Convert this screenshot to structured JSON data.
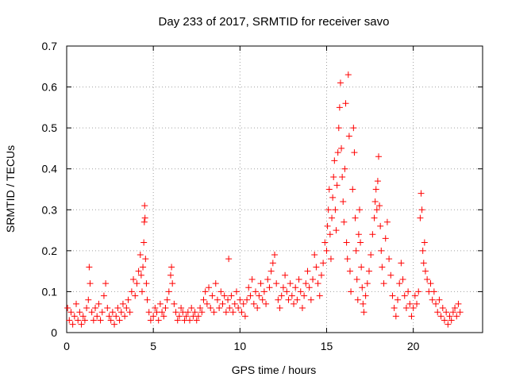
{
  "chart_data": {
    "type": "scatter",
    "title": "Day 233 of 2017, SRMTID for receiver savo",
    "xlabel": "GPS time / hours",
    "ylabel": "SRMTID / TECUs",
    "xlim": [
      0,
      24
    ],
    "ylim": [
      0,
      0.7
    ],
    "xticks": [
      0,
      5,
      10,
      15,
      20
    ],
    "xtick_labels": [
      "0",
      "5",
      "10",
      "15",
      "20"
    ],
    "yticks": [
      0,
      0.1,
      0.2,
      0.3,
      0.4,
      0.5,
      0.6,
      0.7
    ],
    "ytick_labels": [
      "0",
      "0.1",
      "0.2",
      "0.3",
      "0.4",
      "0.5",
      "0.6",
      "0.7"
    ],
    "grid": true,
    "marker": "+",
    "series": [
      {
        "name": "SRMTID",
        "color": "#ff0000",
        "points": [
          [
            0.05,
            0.06
          ],
          [
            0.15,
            0.03
          ],
          [
            0.25,
            0.05
          ],
          [
            0.35,
            0.02
          ],
          [
            0.45,
            0.04
          ],
          [
            0.55,
            0.07
          ],
          [
            0.65,
            0.03
          ],
          [
            0.75,
            0.05
          ],
          [
            0.85,
            0.02
          ],
          [
            0.95,
            0.04
          ],
          [
            1.05,
            0.03
          ],
          [
            1.15,
            0.06
          ],
          [
            1.25,
            0.08
          ],
          [
            1.3,
            0.16
          ],
          [
            1.35,
            0.12
          ],
          [
            1.45,
            0.05
          ],
          [
            1.55,
            0.03
          ],
          [
            1.65,
            0.06
          ],
          [
            1.75,
            0.04
          ],
          [
            1.85,
            0.07
          ],
          [
            1.95,
            0.03
          ],
          [
            2.05,
            0.05
          ],
          [
            2.15,
            0.09
          ],
          [
            2.25,
            0.12
          ],
          [
            2.35,
            0.06
          ],
          [
            2.45,
            0.04
          ],
          [
            2.55,
            0.03
          ],
          [
            2.65,
            0.05
          ],
          [
            2.75,
            0.02
          ],
          [
            2.85,
            0.04
          ],
          [
            2.95,
            0.06
          ],
          [
            3.05,
            0.03
          ],
          [
            3.15,
            0.05
          ],
          [
            3.25,
            0.07
          ],
          [
            3.35,
            0.04
          ],
          [
            3.45,
            0.06
          ],
          [
            3.55,
            0.08
          ],
          [
            3.65,
            0.05
          ],
          [
            3.75,
            0.1
          ],
          [
            3.85,
            0.13
          ],
          [
            3.95,
            0.09
          ],
          [
            4.05,
            0.12
          ],
          [
            4.15,
            0.15
          ],
          [
            4.25,
            0.19
          ],
          [
            4.3,
            0.14
          ],
          [
            4.35,
            0.1
          ],
          [
            4.4,
            0.16
          ],
          [
            4.45,
            0.22
          ],
          [
            4.48,
            0.27
          ],
          [
            4.5,
            0.31
          ],
          [
            4.52,
            0.28
          ],
          [
            4.55,
            0.18
          ],
          [
            4.6,
            0.12
          ],
          [
            4.65,
            0.08
          ],
          [
            4.75,
            0.05
          ],
          [
            4.85,
            0.03
          ],
          [
            5.0,
            0.04
          ],
          [
            5.1,
            0.06
          ],
          [
            5.2,
            0.05
          ],
          [
            5.3,
            0.03
          ],
          [
            5.4,
            0.07
          ],
          [
            5.5,
            0.05
          ],
          [
            5.6,
            0.04
          ],
          [
            5.7,
            0.06
          ],
          [
            5.8,
            0.08
          ],
          [
            5.9,
            0.1
          ],
          [
            6.0,
            0.14
          ],
          [
            6.05,
            0.16
          ],
          [
            6.1,
            0.12
          ],
          [
            6.2,
            0.07
          ],
          [
            6.3,
            0.05
          ],
          [
            6.4,
            0.03
          ],
          [
            6.5,
            0.04
          ],
          [
            6.6,
            0.06
          ],
          [
            6.7,
            0.05
          ],
          [
            6.8,
            0.03
          ],
          [
            6.9,
            0.04
          ],
          [
            7.0,
            0.05
          ],
          [
            7.1,
            0.03
          ],
          [
            7.2,
            0.06
          ],
          [
            7.3,
            0.04
          ],
          [
            7.4,
            0.05
          ],
          [
            7.5,
            0.03
          ],
          [
            7.6,
            0.04
          ],
          [
            7.7,
            0.06
          ],
          [
            7.8,
            0.05
          ],
          [
            7.9,
            0.08
          ],
          [
            8.0,
            0.1
          ],
          [
            8.1,
            0.07
          ],
          [
            8.2,
            0.11
          ],
          [
            8.3,
            0.06
          ],
          [
            8.4,
            0.09
          ],
          [
            8.5,
            0.05
          ],
          [
            8.6,
            0.12
          ],
          [
            8.7,
            0.08
          ],
          [
            8.8,
            0.06
          ],
          [
            8.9,
            0.1
          ],
          [
            9.0,
            0.07
          ],
          [
            9.1,
            0.09
          ],
          [
            9.2,
            0.05
          ],
          [
            9.3,
            0.08
          ],
          [
            9.35,
            0.18
          ],
          [
            9.4,
            0.06
          ],
          [
            9.5,
            0.09
          ],
          [
            9.6,
            0.05
          ],
          [
            9.7,
            0.07
          ],
          [
            9.8,
            0.1
          ],
          [
            9.9,
            0.06
          ],
          [
            10.0,
            0.08
          ],
          [
            10.1,
            0.05
          ],
          [
            10.2,
            0.07
          ],
          [
            10.3,
            0.04
          ],
          [
            10.4,
            0.08
          ],
          [
            10.5,
            0.11
          ],
          [
            10.6,
            0.09
          ],
          [
            10.7,
            0.13
          ],
          [
            10.8,
            0.07
          ],
          [
            10.9,
            0.1
          ],
          [
            11.0,
            0.06
          ],
          [
            11.1,
            0.09
          ],
          [
            11.2,
            0.12
          ],
          [
            11.3,
            0.08
          ],
          [
            11.4,
            0.1
          ],
          [
            11.5,
            0.07
          ],
          [
            11.6,
            0.13
          ],
          [
            11.7,
            0.11
          ],
          [
            11.8,
            0.15
          ],
          [
            11.9,
            0.17
          ],
          [
            12.0,
            0.19
          ],
          [
            12.1,
            0.12
          ],
          [
            12.2,
            0.08
          ],
          [
            12.3,
            0.06
          ],
          [
            12.4,
            0.09
          ],
          [
            12.5,
            0.11
          ],
          [
            12.6,
            0.14
          ],
          [
            12.7,
            0.1
          ],
          [
            12.8,
            0.08
          ],
          [
            12.9,
            0.12
          ],
          [
            13.0,
            0.09
          ],
          [
            13.1,
            0.07
          ],
          [
            13.2,
            0.11
          ],
          [
            13.3,
            0.08
          ],
          [
            13.4,
            0.13
          ],
          [
            13.5,
            0.1
          ],
          [
            13.6,
            0.06
          ],
          [
            13.7,
            0.09
          ],
          [
            13.8,
            0.12
          ],
          [
            13.9,
            0.15
          ],
          [
            14.0,
            0.11
          ],
          [
            14.1,
            0.08
          ],
          [
            14.2,
            0.13
          ],
          [
            14.3,
            0.19
          ],
          [
            14.4,
            0.16
          ],
          [
            14.5,
            0.12
          ],
          [
            14.6,
            0.09
          ],
          [
            14.7,
            0.14
          ],
          [
            14.8,
            0.17
          ],
          [
            14.9,
            0.22
          ],
          [
            15.0,
            0.2
          ],
          [
            15.05,
            0.26
          ],
          [
            15.1,
            0.3
          ],
          [
            15.15,
            0.35
          ],
          [
            15.2,
            0.24
          ],
          [
            15.25,
            0.18
          ],
          [
            15.3,
            0.28
          ],
          [
            15.35,
            0.33
          ],
          [
            15.4,
            0.38
          ],
          [
            15.45,
            0.42
          ],
          [
            15.5,
            0.3
          ],
          [
            15.55,
            0.25
          ],
          [
            15.6,
            0.36
          ],
          [
            15.65,
            0.44
          ],
          [
            15.7,
            0.5
          ],
          [
            15.75,
            0.55
          ],
          [
            15.8,
            0.61
          ],
          [
            15.85,
            0.45
          ],
          [
            15.9,
            0.38
          ],
          [
            15.95,
            0.32
          ],
          [
            16.0,
            0.27
          ],
          [
            16.05,
            0.4
          ],
          [
            16.1,
            0.56
          ],
          [
            16.15,
            0.22
          ],
          [
            16.2,
            0.18
          ],
          [
            16.25,
            0.63
          ],
          [
            16.3,
            0.48
          ],
          [
            16.35,
            0.15
          ],
          [
            16.4,
            0.1
          ],
          [
            16.5,
            0.35
          ],
          [
            16.55,
            0.5
          ],
          [
            16.6,
            0.44
          ],
          [
            16.65,
            0.28
          ],
          [
            16.7,
            0.2
          ],
          [
            16.75,
            0.13
          ],
          [
            16.8,
            0.08
          ],
          [
            16.85,
            0.24
          ],
          [
            16.9,
            0.3
          ],
          [
            16.95,
            0.22
          ],
          [
            17.0,
            0.16
          ],
          [
            17.05,
            0.11
          ],
          [
            17.1,
            0.07
          ],
          [
            17.15,
            0.05
          ],
          [
            17.25,
            0.09
          ],
          [
            17.35,
            0.12
          ],
          [
            17.45,
            0.15
          ],
          [
            17.55,
            0.19
          ],
          [
            17.65,
            0.24
          ],
          [
            17.75,
            0.28
          ],
          [
            17.8,
            0.32
          ],
          [
            17.85,
            0.35
          ],
          [
            17.9,
            0.3
          ],
          [
            17.95,
            0.37
          ],
          [
            18.0,
            0.43
          ],
          [
            18.05,
            0.31
          ],
          [
            18.1,
            0.26
          ],
          [
            18.15,
            0.2
          ],
          [
            18.2,
            0.16
          ],
          [
            18.3,
            0.12
          ],
          [
            18.4,
            0.23
          ],
          [
            18.5,
            0.27
          ],
          [
            18.6,
            0.18
          ],
          [
            18.7,
            0.14
          ],
          [
            18.8,
            0.09
          ],
          [
            18.9,
            0.06
          ],
          [
            19.0,
            0.04
          ],
          [
            19.1,
            0.08
          ],
          [
            19.2,
            0.12
          ],
          [
            19.3,
            0.17
          ],
          [
            19.4,
            0.13
          ],
          [
            19.5,
            0.09
          ],
          [
            19.6,
            0.06
          ],
          [
            19.7,
            0.1
          ],
          [
            19.8,
            0.07
          ],
          [
            19.9,
            0.04
          ],
          [
            20.0,
            0.06
          ],
          [
            20.1,
            0.09
          ],
          [
            20.2,
            0.07
          ],
          [
            20.3,
            0.1
          ],
          [
            20.4,
            0.28
          ],
          [
            20.45,
            0.34
          ],
          [
            20.5,
            0.3
          ],
          [
            20.55,
            0.2
          ],
          [
            20.6,
            0.17
          ],
          [
            20.65,
            0.22
          ],
          [
            20.7,
            0.15
          ],
          [
            20.8,
            0.13
          ],
          [
            20.9,
            0.1
          ],
          [
            21.0,
            0.12
          ],
          [
            21.1,
            0.08
          ],
          [
            21.2,
            0.1
          ],
          [
            21.3,
            0.07
          ],
          [
            21.4,
            0.05
          ],
          [
            21.5,
            0.08
          ],
          [
            21.6,
            0.04
          ],
          [
            21.7,
            0.06
          ],
          [
            21.8,
            0.03
          ],
          [
            21.9,
            0.05
          ],
          [
            22.0,
            0.02
          ],
          [
            22.1,
            0.04
          ],
          [
            22.2,
            0.03
          ],
          [
            22.3,
            0.05
          ],
          [
            22.4,
            0.06
          ],
          [
            22.5,
            0.04
          ],
          [
            22.6,
            0.07
          ],
          [
            22.7,
            0.05
          ]
        ]
      }
    ]
  }
}
